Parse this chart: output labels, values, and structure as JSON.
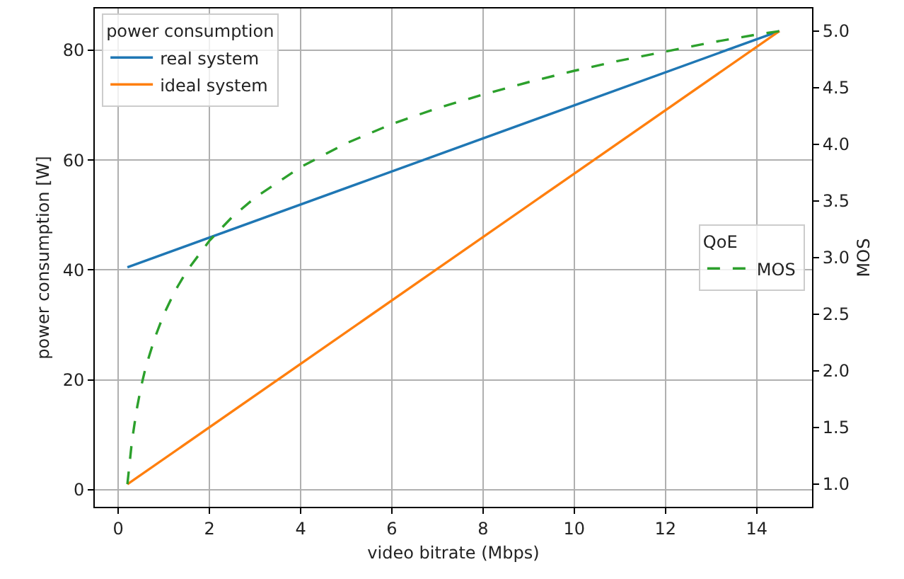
{
  "chart_data": {
    "type": "line",
    "xlabel": "video bitrate (Mbps)",
    "ylabel": "power consumption [W]",
    "y2label": "MOS",
    "xlim": [
      -0.515,
      15.215
    ],
    "xticks": [
      0,
      2,
      4,
      6,
      8,
      10,
      12,
      14
    ],
    "ylim": [
      -3.1,
      87.6
    ],
    "yticks": [
      0,
      20,
      40,
      60,
      80
    ],
    "y2lim": [
      0.8,
      5.2
    ],
    "y2ticks": [
      {
        "value": 1,
        "label": "1.0"
      },
      1.5,
      {
        "value": 2,
        "label": "2.0"
      },
      2.5,
      {
        "value": 3,
        "label": "3.0"
      },
      3.5,
      {
        "value": 4,
        "label": "4.0"
      },
      4.5,
      {
        "value": 5,
        "label": "5.0"
      }
    ],
    "grid": true,
    "legend": [
      "top left",
      "right"
    ],
    "legend_title": [
      "power consumption",
      "QoE"
    ],
    "line_style": "solid",
    "marker": "none",
    "series": [
      {
        "name": "real system",
        "color": "#1f77b4",
        "x": [
          0.2,
          14.5
        ],
        "values": [
          40.5,
          83.5
        ]
      },
      {
        "name": "ideal system",
        "color": "#ff7f0e",
        "x": [
          0.2,
          14.5
        ],
        "values": [
          1,
          83.5
        ]
      },
      {
        "name": "MOS",
        "color": "#2ca02c",
        "axis": "y2",
        "line_style": "dashed",
        "x": [
          0.2,
          0.3,
          0.4,
          0.5,
          0.6,
          0.8,
          1,
          1.25,
          1.5,
          2,
          2.5,
          3,
          4,
          5,
          6,
          7,
          8,
          9,
          10,
          11,
          12,
          13,
          14,
          14.5
        ],
        "values": [
          1.0,
          1.38,
          1.65,
          1.86,
          2.03,
          2.29,
          2.5,
          2.71,
          2.88,
          3.15,
          3.36,
          3.53,
          3.8,
          4.01,
          4.18,
          4.32,
          4.44,
          4.55,
          4.65,
          4.74,
          4.82,
          4.9,
          4.97,
          5.0
        ]
      }
    ]
  }
}
